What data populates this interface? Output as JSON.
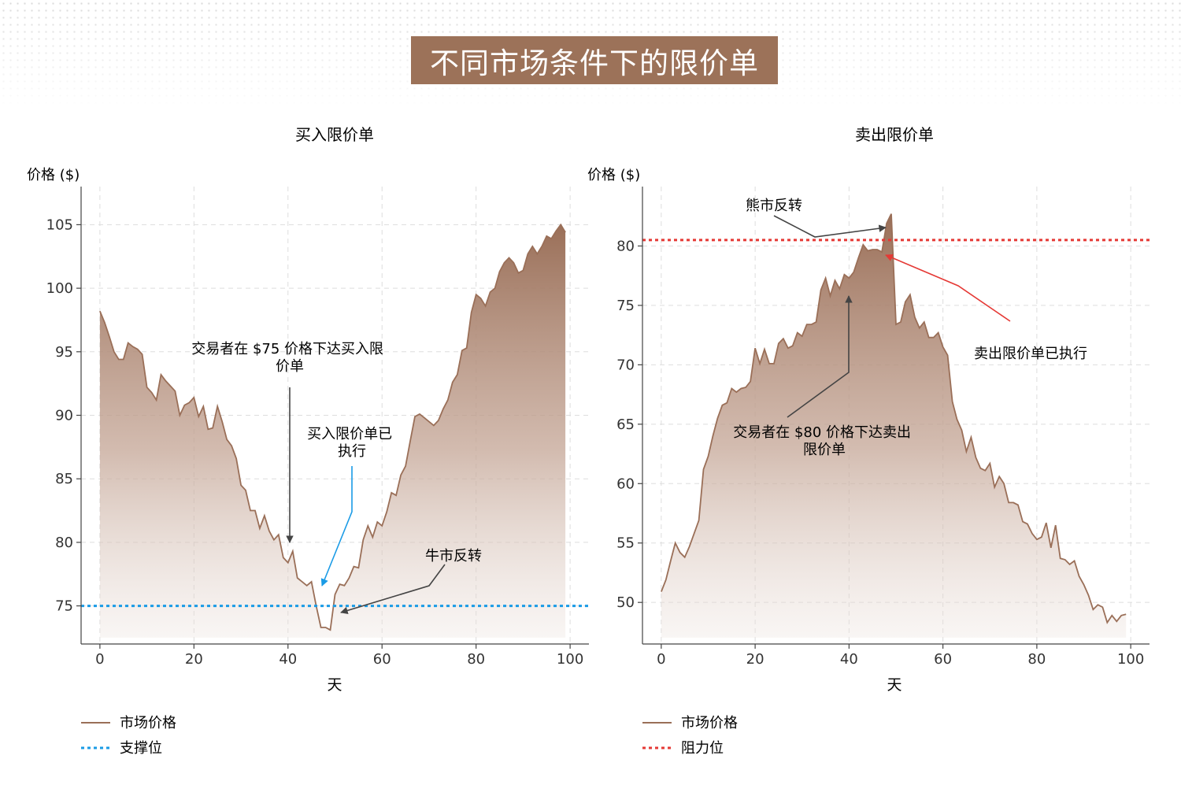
{
  "title": "不同市场条件下的限价单",
  "colors": {
    "area_line": "#9a6f58",
    "title_bg": "#9c7259",
    "support": "#1a9be6",
    "resistance": "#e53935",
    "arrow": "#444444"
  },
  "legend": [
    {
      "panel": 0,
      "items": [
        {
          "label": "市场价格",
          "style": "solid"
        },
        {
          "label": "支撑位",
          "style": "dotted-blue"
        }
      ]
    },
    {
      "panel": 1,
      "items": [
        {
          "label": "市场价格",
          "style": "solid"
        },
        {
          "label": "阻力位",
          "style": "dotted-red"
        }
      ]
    }
  ],
  "chart_data": [
    {
      "type": "area",
      "title": "买入限价单",
      "xlabel": "天",
      "ylabel": "价格 ($)",
      "xlim": [
        -4,
        104
      ],
      "ylim": [
        72,
        108
      ],
      "xticks": [
        0,
        20,
        40,
        60,
        80,
        100
      ],
      "yticks": [
        75,
        80,
        85,
        90,
        95,
        100,
        105
      ],
      "series": [
        {
          "name": "市场价格",
          "x": [
            0,
            1,
            2,
            3,
            4,
            5,
            6,
            7,
            8,
            9,
            10,
            11,
            12,
            13,
            14,
            15,
            16,
            17,
            18,
            19,
            20,
            21,
            22,
            23,
            24,
            25,
            26,
            27,
            28,
            29,
            30,
            31,
            32,
            33,
            34,
            35,
            36,
            37,
            38,
            39,
            40,
            41,
            42,
            43,
            44,
            45,
            46,
            47,
            48,
            49,
            50,
            51,
            52,
            53,
            54,
            55,
            56,
            57,
            58,
            59,
            60,
            61,
            62,
            63,
            64,
            65,
            66,
            67,
            68,
            69,
            70,
            71,
            72,
            73,
            74,
            75,
            76,
            77,
            78,
            79,
            80,
            81,
            82,
            83,
            84,
            85,
            86,
            87,
            88,
            89,
            90,
            91,
            92,
            93,
            94,
            95,
            96,
            97,
            98,
            99
          ],
          "y": [
            98.2,
            97.3,
            96.2,
            95.0,
            94.4,
            94.4,
            95.7,
            95.4,
            95.2,
            94.8,
            92.2,
            91.8,
            91.2,
            93.2,
            92.7,
            92.3,
            91.9,
            90.0,
            90.8,
            91.0,
            91.4,
            89.9,
            90.7,
            88.9,
            89.0,
            90.7,
            89.5,
            88.1,
            87.6,
            86.6,
            84.5,
            84.1,
            82.5,
            82.5,
            81.1,
            82.1,
            80.9,
            80.2,
            80.6,
            78.8,
            78.4,
            79.3,
            77.2,
            76.9,
            76.6,
            76.9,
            75.0,
            73.3,
            73.3,
            73.1,
            75.9,
            76.7,
            76.6,
            77.2,
            78.1,
            78.0,
            80.2,
            81.3,
            80.4,
            81.6,
            81.3,
            82.4,
            83.9,
            83.7,
            85.3,
            86.0,
            88.0,
            89.9,
            90.1,
            89.8,
            89.5,
            89.2,
            89.6,
            90.5,
            91.2,
            92.6,
            93.2,
            95.1,
            95.3,
            98.1,
            99.5,
            99.2,
            98.6,
            99.7,
            100.0,
            101.3,
            102.0,
            102.4,
            102.0,
            101.2,
            101.4,
            102.7,
            103.3,
            102.7,
            103.3,
            104.1,
            103.9,
            104.5,
            105.0,
            104.4
          ]
        }
      ],
      "support_level": {
        "name": "支撑位",
        "value": 75
      },
      "annotations": [
        {
          "text": "交易者在 $75 价格下达买入限价单",
          "target": [
            40,
            79.8
          ]
        },
        {
          "text": "买入限价单已执行",
          "target": [
            47,
            75.9
          ]
        },
        {
          "text": "牛市反转",
          "target": [
            50,
            73.2
          ]
        }
      ],
      "grid": true
    },
    {
      "type": "area",
      "title": "卖出限价单",
      "xlabel": "天",
      "ylabel": "价格 ($)",
      "xlim": [
        -4,
        104
      ],
      "ylim": [
        46.5,
        85
      ],
      "xticks": [
        0,
        20,
        40,
        60,
        80,
        100
      ],
      "yticks": [
        50,
        55,
        60,
        65,
        70,
        75,
        80
      ],
      "series": [
        {
          "name": "市场价格",
          "x": [
            0,
            1,
            2,
            3,
            4,
            5,
            6,
            7,
            8,
            9,
            10,
            11,
            12,
            13,
            14,
            15,
            16,
            17,
            18,
            19,
            20,
            21,
            22,
            23,
            24,
            25,
            26,
            27,
            28,
            29,
            30,
            31,
            32,
            33,
            34,
            35,
            36,
            37,
            38,
            39,
            40,
            41,
            42,
            43,
            44,
            45,
            46,
            47,
            48,
            49,
            50,
            51,
            52,
            53,
            54,
            55,
            56,
            57,
            58,
            59,
            60,
            61,
            62,
            63,
            64,
            65,
            66,
            67,
            68,
            69,
            70,
            71,
            72,
            73,
            74,
            75,
            76,
            77,
            78,
            79,
            80,
            81,
            82,
            83,
            84,
            85,
            86,
            87,
            88,
            89,
            90,
            91,
            92,
            93,
            94,
            95,
            96,
            97,
            98,
            99
          ],
          "y": [
            50.9,
            51.9,
            53.5,
            55.0,
            54.2,
            53.8,
            54.7,
            55.8,
            56.9,
            61.2,
            62.3,
            64.0,
            65.5,
            66.6,
            66.8,
            68.0,
            67.7,
            68.0,
            68.1,
            68.6,
            71.4,
            70.1,
            71.3,
            70.1,
            70.1,
            71.8,
            72.2,
            71.4,
            71.6,
            72.7,
            72.4,
            73.4,
            73.4,
            73.6,
            76.3,
            77.3,
            75.8,
            77.1,
            76.4,
            77.6,
            77.3,
            77.8,
            79.0,
            80.1,
            79.6,
            79.7,
            79.7,
            79.5,
            81.9,
            82.7,
            73.4,
            73.6,
            75.3,
            75.9,
            74.0,
            73.1,
            73.6,
            72.3,
            72.3,
            72.7,
            71.5,
            70.8,
            66.9,
            65.4,
            64.5,
            62.7,
            63.9,
            62.2,
            61.3,
            61.1,
            61.7,
            59.7,
            60.6,
            60.0,
            58.4,
            58.4,
            58.2,
            56.8,
            56.6,
            55.8,
            55.3,
            55.5,
            56.7,
            54.6,
            56.5,
            53.7,
            53.6,
            53.2,
            53.5,
            52.2,
            51.5,
            50.6,
            49.4,
            49.8,
            49.6,
            48.3,
            48.9,
            48.4,
            48.9,
            49.0
          ]
        }
      ],
      "resistance_level": {
        "name": "阻力位",
        "value": 80.5
      },
      "annotations": [
        {
          "text": "熊市反转",
          "target": [
            48,
            82.4
          ]
        },
        {
          "text": "卖出限价单已执行",
          "target": [
            48,
            80.3
          ]
        },
        {
          "text": "交易者在 $80 价格下达卖出限价单",
          "target": [
            40,
            76.4
          ]
        }
      ],
      "grid": true
    }
  ]
}
